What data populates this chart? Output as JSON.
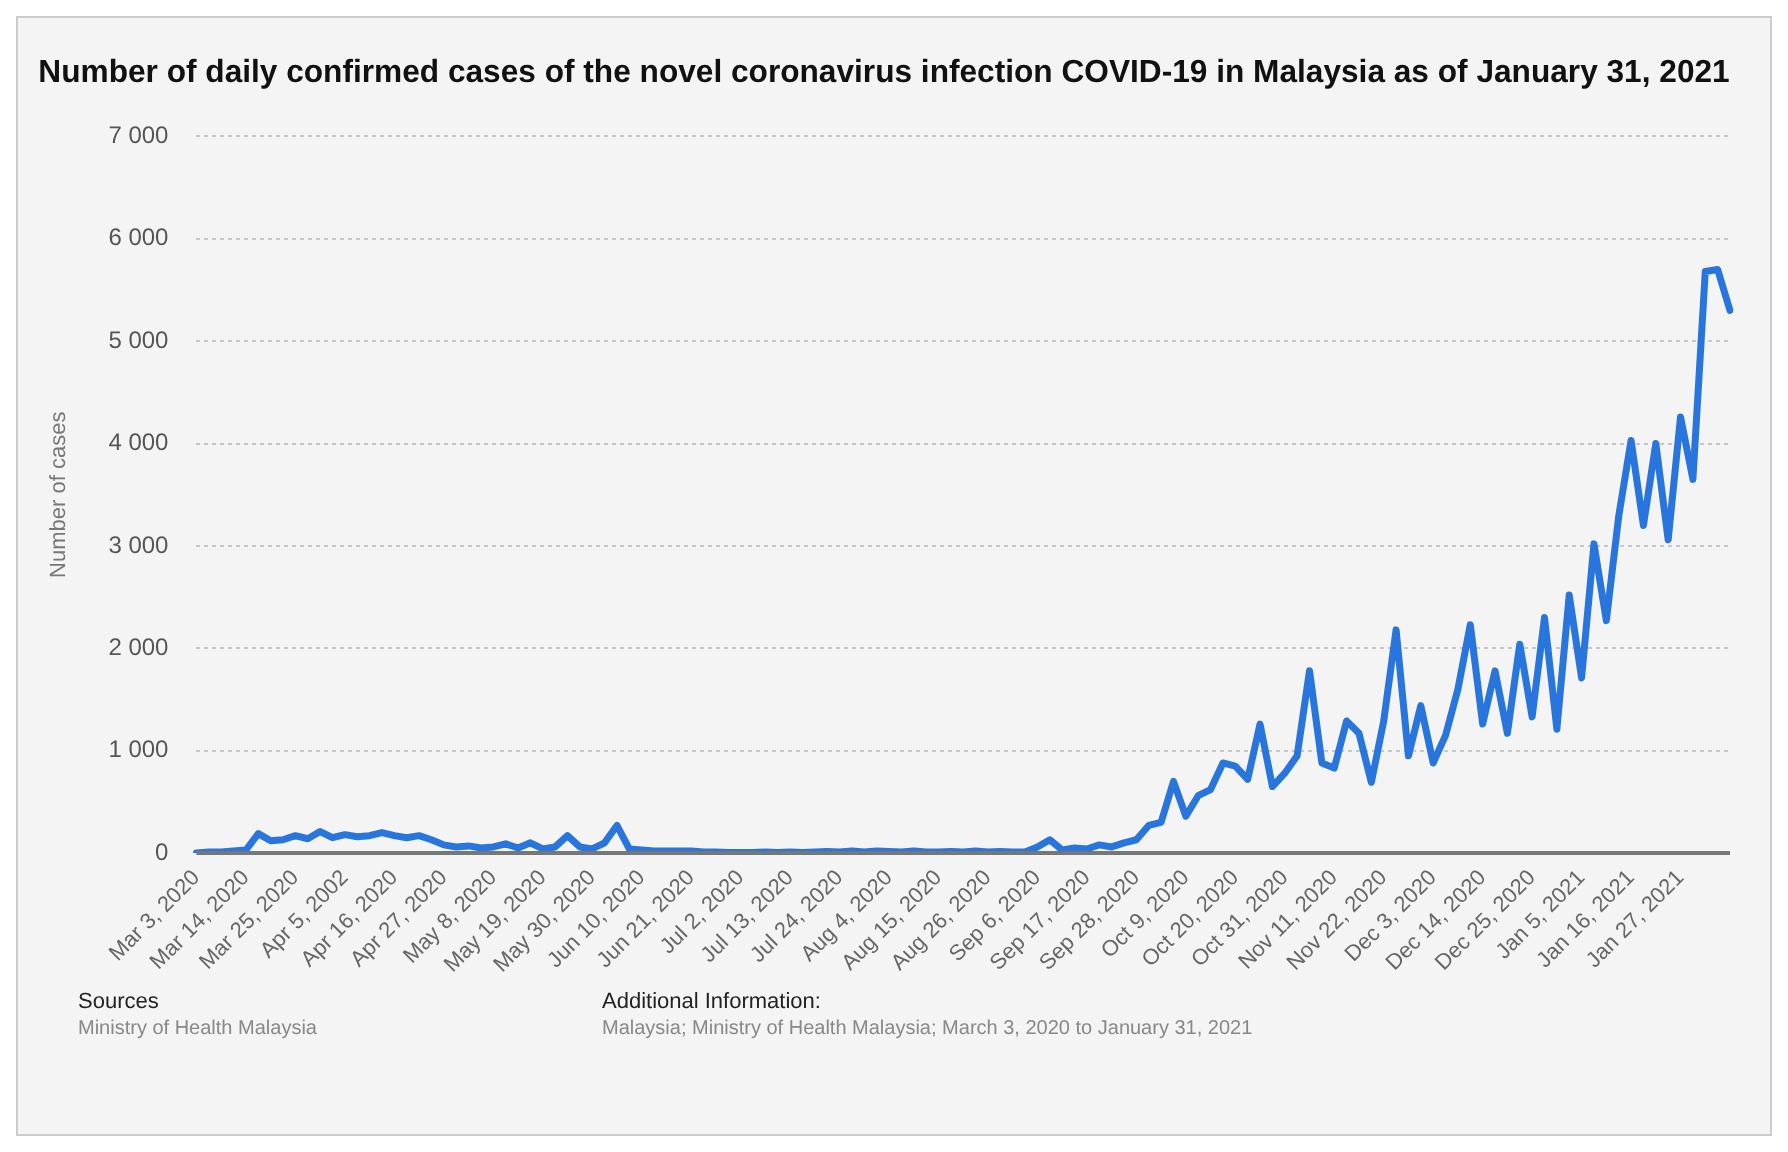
{
  "chart_data": {
    "type": "line",
    "title": "Number of daily confirmed cases of the novel coronavirus infection COVID-19 in Malaysia as of January 31, 2021",
    "ylabel": "Number of cases",
    "categories": [
      "Mar 3, 2020",
      null,
      null,
      null,
      "Mar 14, 2020",
      null,
      null,
      null,
      "Mar 25, 2020",
      null,
      null,
      null,
      "Apr 5, 2002",
      null,
      null,
      null,
      "Apr 16, 2020",
      null,
      null,
      null,
      "Apr 27, 2020",
      null,
      null,
      null,
      "May 8, 2020",
      null,
      null,
      null,
      "May 19, 2020",
      null,
      null,
      null,
      "May 30, 2020",
      null,
      null,
      null,
      "Jun 10, 2020",
      null,
      null,
      null,
      "Jun 21, 2020",
      null,
      null,
      null,
      "Jul 2, 2020",
      null,
      null,
      null,
      "Jul 13, 2020",
      null,
      null,
      null,
      "Jul 24, 2020",
      null,
      null,
      null,
      "Aug 4, 2020",
      null,
      null,
      null,
      "Aug 15, 2020",
      null,
      null,
      null,
      "Aug 26, 2020",
      null,
      null,
      null,
      "Sep 6, 2020",
      null,
      null,
      null,
      "Sep 17, 2020",
      null,
      null,
      null,
      "Sep 28, 2020",
      null,
      null,
      null,
      "Oct 9, 2020",
      null,
      null,
      null,
      "Oct 20, 2020",
      null,
      null,
      null,
      "Oct 31, 2020",
      null,
      null,
      null,
      "Nov 11, 2020",
      null,
      null,
      null,
      "Nov 22, 2020",
      null,
      null,
      null,
      "Dec 3, 2020",
      null,
      null,
      null,
      "Dec 14, 2020",
      null,
      null,
      null,
      "Dec 25, 2020",
      null,
      null,
      null,
      "Jan 5, 2021",
      null,
      null,
      null,
      "Jan 16, 2021",
      null,
      null,
      null,
      "Jan 27, 2021",
      null,
      null,
      null,
      null
    ],
    "series": [
      {
        "color": "#2876dd",
        "values": [
          0,
          10,
          10,
          20,
          30,
          190,
          120,
          130,
          170,
          140,
          210,
          150,
          180,
          160,
          170,
          200,
          170,
          150,
          170,
          130,
          80,
          60,
          70,
          50,
          60,
          90,
          50,
          100,
          40,
          60,
          170,
          60,
          40,
          100,
          270,
          40,
          30,
          20,
          20,
          20,
          20,
          10,
          10,
          5,
          5,
          5,
          10,
          5,
          10,
          5,
          10,
          15,
          10,
          20,
          10,
          20,
          15,
          10,
          20,
          10,
          10,
          15,
          10,
          20,
          10,
          15,
          10,
          10,
          60,
          130,
          30,
          50,
          40,
          80,
          60,
          100,
          130,
          270,
          300,
          700,
          360,
          560,
          620,
          880,
          850,
          720,
          1260,
          650,
          780,
          950,
          1780,
          880,
          830,
          1290,
          1170,
          690,
          1290,
          2180,
          950,
          1440,
          880,
          1150,
          1600,
          2230,
          1260,
          1780,
          1170,
          2040,
          1330,
          2300,
          1210,
          2520,
          1710,
          3020,
          2270,
          3290,
          4030,
          3200,
          4000,
          3060,
          4260,
          3650,
          5680,
          5700,
          5300
        ]
      }
    ],
    "ylim": [
      0,
      7000
    ],
    "yticks": [
      0,
      {
        "value": 1000,
        "label": "1 000"
      },
      {
        "value": 2000,
        "label": "2 000"
      },
      {
        "value": 3000,
        "label": "3 000"
      },
      {
        "value": 4000,
        "label": "4 000"
      },
      {
        "value": 5000,
        "label": "5 000"
      },
      {
        "value": 6000,
        "label": "6 000"
      },
      {
        "value": 7000,
        "label": "7 000"
      }
    ],
    "grid": "y",
    "legend": false,
    "marker": "none",
    "line_style": "solid",
    "annotations": [
      "Sources",
      "Ministry of Health Malaysia",
      "Additional Information:",
      "Malaysia; Ministry of Health Malaysia; March 3, 2020 to January 31, 2021"
    ]
  }
}
